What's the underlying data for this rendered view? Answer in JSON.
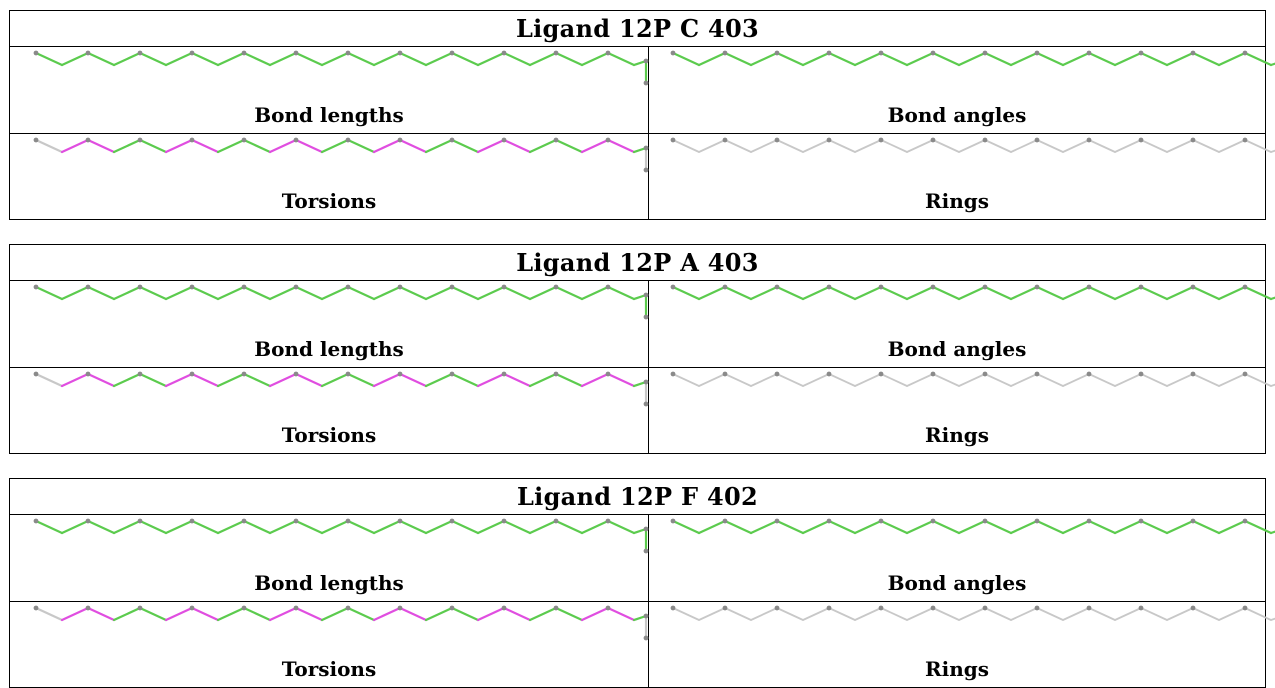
{
  "colors": {
    "ok_bond": "#5ccb4e",
    "outlier_bond": "#e04ee0",
    "ring_bond": "#c8c8c8",
    "atom": "#8a8a8a",
    "border": "#000000"
  },
  "ligands": [
    {
      "title": "Ligand 12P C 403",
      "panels": {
        "bond_lengths": {
          "caption": "Bond lengths"
        },
        "bond_angles": {
          "caption": "Bond angles"
        },
        "torsions": {
          "caption": "Torsions"
        },
        "rings": {
          "caption": "Rings"
        }
      }
    },
    {
      "title": "Ligand 12P A 403",
      "panels": {
        "bond_lengths": {
          "caption": "Bond lengths"
        },
        "bond_angles": {
          "caption": "Bond angles"
        },
        "torsions": {
          "caption": "Torsions"
        },
        "rings": {
          "caption": "Rings"
        }
      }
    },
    {
      "title": "Ligand 12P F 402",
      "panels": {
        "bond_lengths": {
          "caption": "Bond lengths"
        },
        "bond_angles": {
          "caption": "Bond angles"
        },
        "torsions": {
          "caption": "Torsions"
        },
        "rings": {
          "caption": "Rings"
        }
      }
    }
  ]
}
